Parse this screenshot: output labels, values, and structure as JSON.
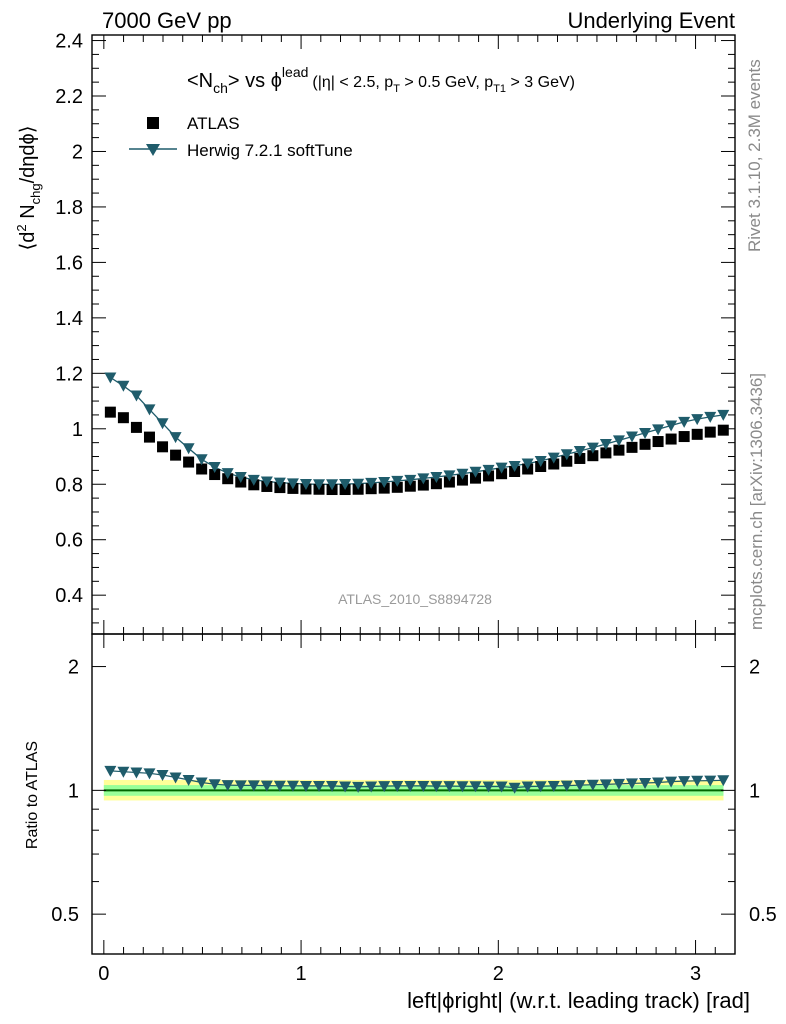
{
  "header": {
    "left": "7000 GeV pp",
    "right": "Underlying Event"
  },
  "side_labels": {
    "rivet": "Rivet 3.1.10,  2.3M events",
    "mcplots": "mcplots.cern.ch [arXiv:1306.3436]"
  },
  "colors": {
    "atlas_marker": "#000000",
    "herwig": "#1f5c6b",
    "ratio_band_inner": "#99ff99",
    "ratio_band_outer": "#ffff99",
    "ratio_line": "#006600",
    "watermark": "#9a9a9a"
  },
  "chart_data": [
    {
      "type": "scatter",
      "title_parts": {
        "n": "<N",
        "ch": "ch",
        "vs": "> vs ",
        "phi": "ϕ",
        "lead": "lead",
        "cuts_a": "(|η| < 2.5, p",
        "t": "T",
        "cuts_b": " > 0.5 GeV, p",
        "t1": "T1",
        "cuts_c": " > 3 GeV)"
      },
      "ylabel_parts": {
        "a": "⟨d",
        "sup": "2",
        "b": " N",
        "sub": "chg",
        "c": "/dηdϕ⟩"
      },
      "watermark": "ATLAS_2010_S8894728",
      "ylim": [
        0.26,
        2.42
      ],
      "xlim": [
        -0.06,
        3.2
      ],
      "yticks": [
        "0.4",
        "0.6",
        "0.8",
        "1",
        "1.2",
        "1.4",
        "1.6",
        "1.8",
        "2",
        "2.2",
        "2.4"
      ],
      "legend_position": "top-left",
      "series": [
        {
          "name": "ATLAS",
          "marker": "square",
          "x": [
            0.0331,
            0.0992,
            0.1653,
            0.2314,
            0.2976,
            0.3637,
            0.4298,
            0.4959,
            0.562,
            0.6281,
            0.6943,
            0.7604,
            0.8265,
            0.8926,
            0.9587,
            1.0248,
            1.091,
            1.1571,
            1.2232,
            1.2893,
            1.3554,
            1.4215,
            1.4877,
            1.5538,
            1.6199,
            1.686,
            1.7521,
            1.8182,
            1.8844,
            1.9505,
            2.0166,
            2.0827,
            2.1488,
            2.2149,
            2.2811,
            2.3472,
            2.4133,
            2.4794,
            2.5455,
            2.6116,
            2.6778,
            2.7439,
            2.81,
            2.8761,
            2.9422,
            3.0083,
            3.0745,
            3.1406
          ],
          "y": [
            1.06,
            1.04,
            1.005,
            0.97,
            0.935,
            0.905,
            0.88,
            0.855,
            0.835,
            0.82,
            0.808,
            0.798,
            0.792,
            0.788,
            0.785,
            0.783,
            0.782,
            0.781,
            0.781,
            0.782,
            0.784,
            0.786,
            0.789,
            0.793,
            0.797,
            0.802,
            0.808,
            0.815,
            0.822,
            0.83,
            0.838,
            0.846,
            0.855,
            0.864,
            0.873,
            0.883,
            0.893,
            0.903,
            0.913,
            0.923,
            0.933,
            0.944,
            0.954,
            0.963,
            0.972,
            0.98,
            0.988,
            0.995
          ]
        },
        {
          "name": "Herwig 7.2.1 softTune",
          "marker": "triangle-down",
          "x": [
            0.0331,
            0.0992,
            0.1653,
            0.2314,
            0.2976,
            0.3637,
            0.4298,
            0.4959,
            0.562,
            0.6281,
            0.6943,
            0.7604,
            0.8265,
            0.8926,
            0.9587,
            1.0248,
            1.091,
            1.1571,
            1.2232,
            1.2893,
            1.3554,
            1.4215,
            1.4877,
            1.5538,
            1.6199,
            1.686,
            1.7521,
            1.8182,
            1.8844,
            1.9505,
            2.0166,
            2.0827,
            2.1488,
            2.2149,
            2.2811,
            2.3472,
            2.4133,
            2.4794,
            2.5455,
            2.6116,
            2.6778,
            2.7439,
            2.81,
            2.8761,
            2.9422,
            3.0083,
            3.0745,
            3.1406
          ],
          "y": [
            1.185,
            1.155,
            1.12,
            1.07,
            1.02,
            0.97,
            0.93,
            0.89,
            0.862,
            0.84,
            0.826,
            0.816,
            0.81,
            0.806,
            0.803,
            0.801,
            0.8,
            0.8,
            0.801,
            0.802,
            0.805,
            0.808,
            0.812,
            0.816,
            0.821,
            0.826,
            0.832,
            0.838,
            0.845,
            0.852,
            0.86,
            0.866,
            0.875,
            0.884,
            0.896,
            0.908,
            0.92,
            0.932,
            0.945,
            0.958,
            0.972,
            0.985,
            0.998,
            1.012,
            1.025,
            1.035,
            1.043,
            1.05
          ]
        }
      ]
    },
    {
      "type": "scatter",
      "ylabel": "Ratio to ATLAS",
      "xlabel": "left|ϕright| (w.r.t. leading track) [rad]",
      "ylim": [
        0.4,
        2.4
      ],
      "xlim": [
        -0.06,
        3.2
      ],
      "yscale": "log",
      "yticks": [
        "0.5",
        "1",
        "2"
      ],
      "xticks": [
        "0",
        "1",
        "2",
        "3"
      ],
      "reference_line": 1.0,
      "band_inner": [
        0.97,
        1.03
      ],
      "band_outer": [
        0.945,
        1.06
      ],
      "series": [
        {
          "name": "Herwig 7.2.1 softTune",
          "marker": "triangle-down",
          "x": [
            0.0331,
            0.0992,
            0.1653,
            0.2314,
            0.2976,
            0.3637,
            0.4298,
            0.4959,
            0.562,
            0.6281,
            0.6943,
            0.7604,
            0.8265,
            0.8926,
            0.9587,
            1.0248,
            1.091,
            1.1571,
            1.2232,
            1.2893,
            1.3554,
            1.4215,
            1.4877,
            1.5538,
            1.6199,
            1.686,
            1.7521,
            1.8182,
            1.8844,
            1.9505,
            2.0166,
            2.0827,
            2.1488,
            2.2149,
            2.2811,
            2.3472,
            2.4133,
            2.4794,
            2.5455,
            2.6116,
            2.6778,
            2.7439,
            2.81,
            2.8761,
            2.9422,
            3.0083,
            3.0745,
            3.1406
          ],
          "y": [
            1.115,
            1.11,
            1.105,
            1.1,
            1.09,
            1.075,
            1.06,
            1.045,
            1.035,
            1.03,
            1.028,
            1.028,
            1.027,
            1.026,
            1.026,
            1.025,
            1.025,
            1.025,
            1.022,
            1.02,
            1.022,
            1.024,
            1.025,
            1.025,
            1.025,
            1.024,
            1.024,
            1.023,
            1.023,
            1.022,
            1.022,
            1.015,
            1.022,
            1.023,
            1.025,
            1.027,
            1.03,
            1.032,
            1.034,
            1.037,
            1.04,
            1.042,
            1.045,
            1.05,
            1.053,
            1.055,
            1.056,
            1.058
          ]
        }
      ]
    }
  ]
}
